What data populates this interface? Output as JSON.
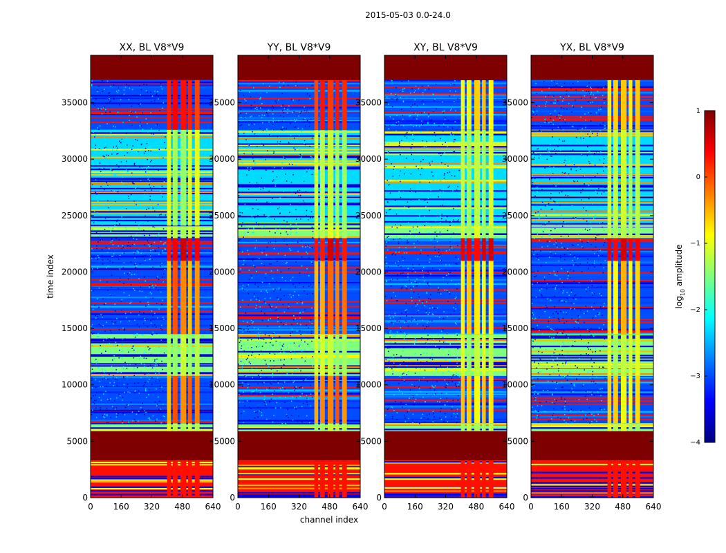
{
  "chart_data": {
    "type": "heatmap",
    "suptitle": "2015-05-03 0.0-24.0",
    "xlabel": "channel index",
    "ylabel": "time index",
    "xlim": [
      0,
      640
    ],
    "ylim": [
      0,
      39200
    ],
    "xticks": [
      0,
      160,
      320,
      480,
      640
    ],
    "yticks": [
      0,
      5000,
      10000,
      15000,
      20000,
      25000,
      30000,
      35000
    ],
    "panels": [
      {
        "id": "xx",
        "title": "XX, BL V8*V9"
      },
      {
        "id": "yy",
        "title": "YY, BL V8*V9"
      },
      {
        "id": "xy",
        "title": "XY, BL V8*V9"
      },
      {
        "id": "yx",
        "title": "YX, BL V8*V9"
      }
    ],
    "colorbar": {
      "label": "log",
      "label_sub": "10",
      "label_suffix": " amplitude",
      "range": [
        -4,
        1
      ],
      "ticks": [
        1,
        0,
        -1,
        -2,
        -3,
        -4
      ],
      "colormap": "jet",
      "colors": [
        "#00007f",
        "#0000ff",
        "#007fff",
        "#00ffff",
        "#7fff7f",
        "#ffff00",
        "#ff7f00",
        "#ff0000",
        "#7f0000"
      ]
    },
    "bands": [
      {
        "t0": 0,
        "t1": 3300,
        "level": 0.3,
        "note": "striped low segment"
      },
      {
        "t0": 3300,
        "t1": 5900,
        "level": 1.0,
        "note": "flagged (saturated)"
      },
      {
        "t0": 5900,
        "t1": 6600,
        "level": -1.5
      },
      {
        "t0": 6600,
        "t1": 10800,
        "level": -3.0,
        "note": "blue with orange stripes"
      },
      {
        "t0": 10800,
        "t1": 14500,
        "level": -1.5
      },
      {
        "t0": 14500,
        "t1": 21000,
        "level": -3.0
      },
      {
        "t0": 21000,
        "t1": 23000,
        "level": -3.0
      },
      {
        "t0": 23000,
        "t1": 24100,
        "level": -1.5
      },
      {
        "t0": 24100,
        "t1": 32600,
        "level": -2.3
      },
      {
        "t0": 32600,
        "t1": 37000,
        "level": -3.0
      },
      {
        "t0": 37000,
        "t1": 39200,
        "level": 1.0,
        "note": "flagged (saturated)"
      }
    ]
  }
}
